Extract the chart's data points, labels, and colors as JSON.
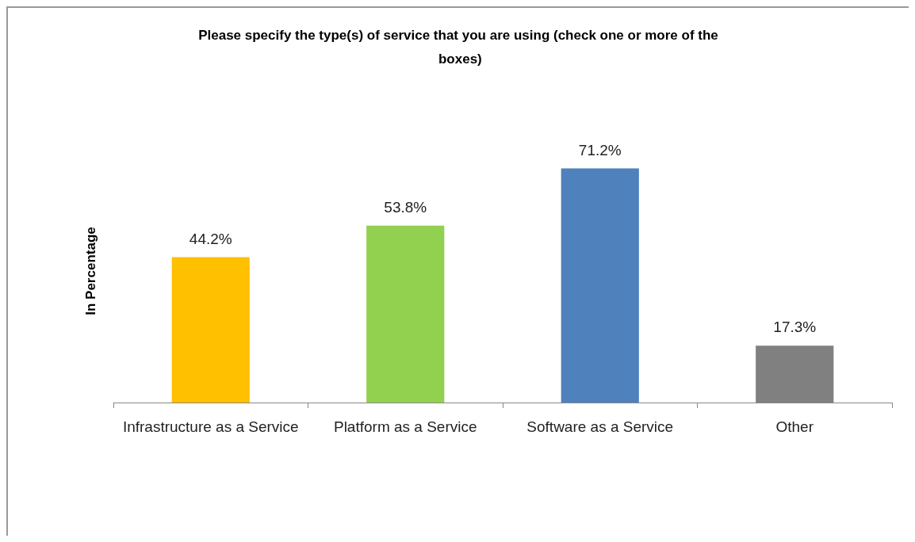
{
  "chart_data": {
    "type": "bar",
    "title": "Please specify the type(s) of service that you are using (check one or more of the boxes)",
    "ylabel": "In Percentage",
    "categories": [
      "Infrastructure as a Service",
      "Platform as a Service",
      "Software as a Service",
      "Other"
    ],
    "values": [
      44.2,
      53.8,
      71.2,
      17.3
    ],
    "colors": [
      "#ffc000",
      "#92d050",
      "#4f81bd",
      "#808080"
    ],
    "value_labels": [
      "44.2%",
      "53.8%",
      "71.2%",
      "17.3%"
    ],
    "tick_labels": "x",
    "grid": false
  }
}
